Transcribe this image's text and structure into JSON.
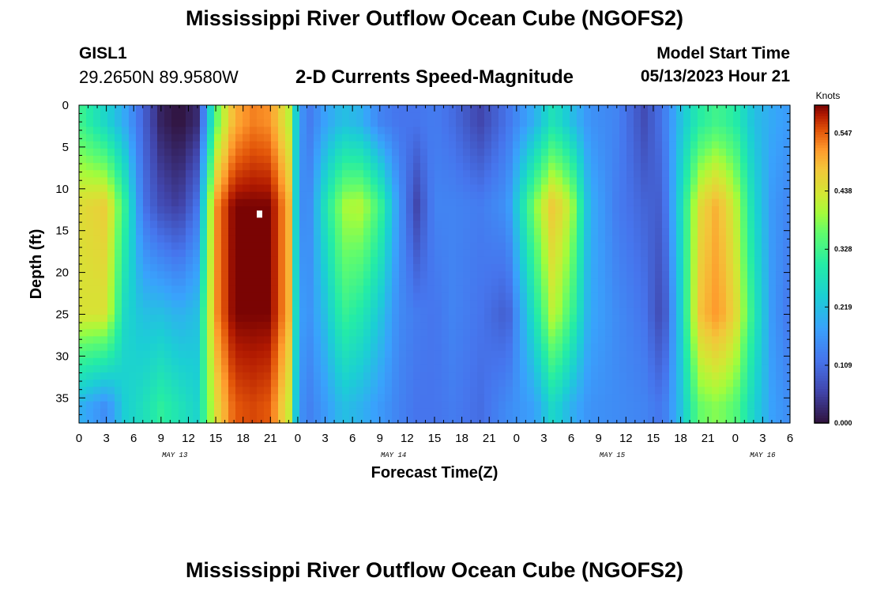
{
  "header": {
    "title": "Mississippi River Outflow Ocean Cube (NGOFS2)",
    "station": "GISL1",
    "coordinates": "29.2650N  89.9580W",
    "model_start_label": "Model Start Time",
    "model_start_value": "05/13/2023 Hour 21"
  },
  "chart_data": {
    "type": "heatmap",
    "subtitle": "2-D Currents Speed-Magnitude",
    "xlabel": "Forecast Time(Z)",
    "ylabel": "Depth (ft)",
    "x_tick_labels": [
      "0",
      "3",
      "6",
      "9",
      "12",
      "15",
      "18",
      "21",
      "0",
      "3",
      "6",
      "9",
      "12",
      "15",
      "18",
      "21",
      "0",
      "3",
      "6",
      "9",
      "12",
      "15",
      "18",
      "21",
      "0",
      "3",
      "6"
    ],
    "date_labels": [
      "MAY 13",
      "MAY 14",
      "MAY 15",
      "MAY 16"
    ],
    "y_tick_labels": [
      "0",
      "5",
      "10",
      "15",
      "20",
      "25",
      "30",
      "35"
    ],
    "x_range_hours": [
      0,
      78
    ],
    "y_range_ft": [
      0,
      38
    ],
    "colorbar": {
      "unit": "Knots",
      "tick_labels": [
        "0.000",
        "0.109",
        "0.219",
        "0.328",
        "0.438",
        "0.547"
      ],
      "range": [
        0,
        0.6
      ]
    },
    "column_profiles_knots": [
      [
        0,
        0.33,
        0.45,
        0.44,
        0.2
      ],
      [
        3,
        0.25,
        0.47,
        0.44,
        0.15
      ],
      [
        5,
        0.19,
        0.32,
        0.26,
        0.24
      ],
      [
        7,
        0.1,
        0.12,
        0.22,
        0.27
      ],
      [
        9,
        0.02,
        0.07,
        0.22,
        0.31
      ],
      [
        11,
        0.0,
        0.05,
        0.2,
        0.28
      ],
      [
        13,
        0.03,
        0.12,
        0.22,
        0.25
      ],
      [
        15,
        0.35,
        0.52,
        0.52,
        0.45
      ],
      [
        17,
        0.5,
        0.6,
        0.6,
        0.55
      ],
      [
        19,
        0.53,
        0.6,
        0.6,
        0.56
      ],
      [
        21,
        0.52,
        0.6,
        0.6,
        0.55
      ],
      [
        23,
        0.42,
        0.5,
        0.5,
        0.43
      ],
      [
        24,
        0.2,
        0.18,
        0.2,
        0.18
      ],
      [
        25,
        0.12,
        0.13,
        0.15,
        0.13
      ],
      [
        27,
        0.18,
        0.28,
        0.22,
        0.17
      ],
      [
        29,
        0.22,
        0.4,
        0.32,
        0.22
      ],
      [
        31,
        0.2,
        0.41,
        0.29,
        0.2
      ],
      [
        33,
        0.14,
        0.33,
        0.23,
        0.17
      ],
      [
        35,
        0.12,
        0.17,
        0.15,
        0.14
      ],
      [
        37,
        0.12,
        0.06,
        0.13,
        0.12
      ],
      [
        39,
        0.13,
        0.14,
        0.12,
        0.12
      ],
      [
        41,
        0.11,
        0.14,
        0.14,
        0.13
      ],
      [
        44,
        0.06,
        0.13,
        0.12,
        0.11
      ],
      [
        47,
        0.12,
        0.16,
        0.09,
        0.15
      ],
      [
        50,
        0.2,
        0.38,
        0.28,
        0.18
      ],
      [
        52,
        0.28,
        0.48,
        0.42,
        0.26
      ],
      [
        54,
        0.22,
        0.41,
        0.33,
        0.2
      ],
      [
        56,
        0.16,
        0.2,
        0.19,
        0.16
      ],
      [
        59,
        0.14,
        0.13,
        0.15,
        0.15
      ],
      [
        62,
        0.07,
        0.1,
        0.12,
        0.14
      ],
      [
        64,
        0.12,
        0.09,
        0.06,
        0.12
      ],
      [
        66,
        0.22,
        0.26,
        0.24,
        0.22
      ],
      [
        68,
        0.3,
        0.45,
        0.48,
        0.36
      ],
      [
        70,
        0.33,
        0.5,
        0.52,
        0.38
      ],
      [
        72,
        0.3,
        0.42,
        0.46,
        0.35
      ],
      [
        74,
        0.22,
        0.26,
        0.3,
        0.25
      ],
      [
        76,
        0.19,
        0.17,
        0.17,
        0.18
      ],
      [
        78,
        0.17,
        0.14,
        0.12,
        0.15
      ]
    ],
    "profile_depths_ft": [
      2,
      12,
      25,
      36
    ]
  }
}
